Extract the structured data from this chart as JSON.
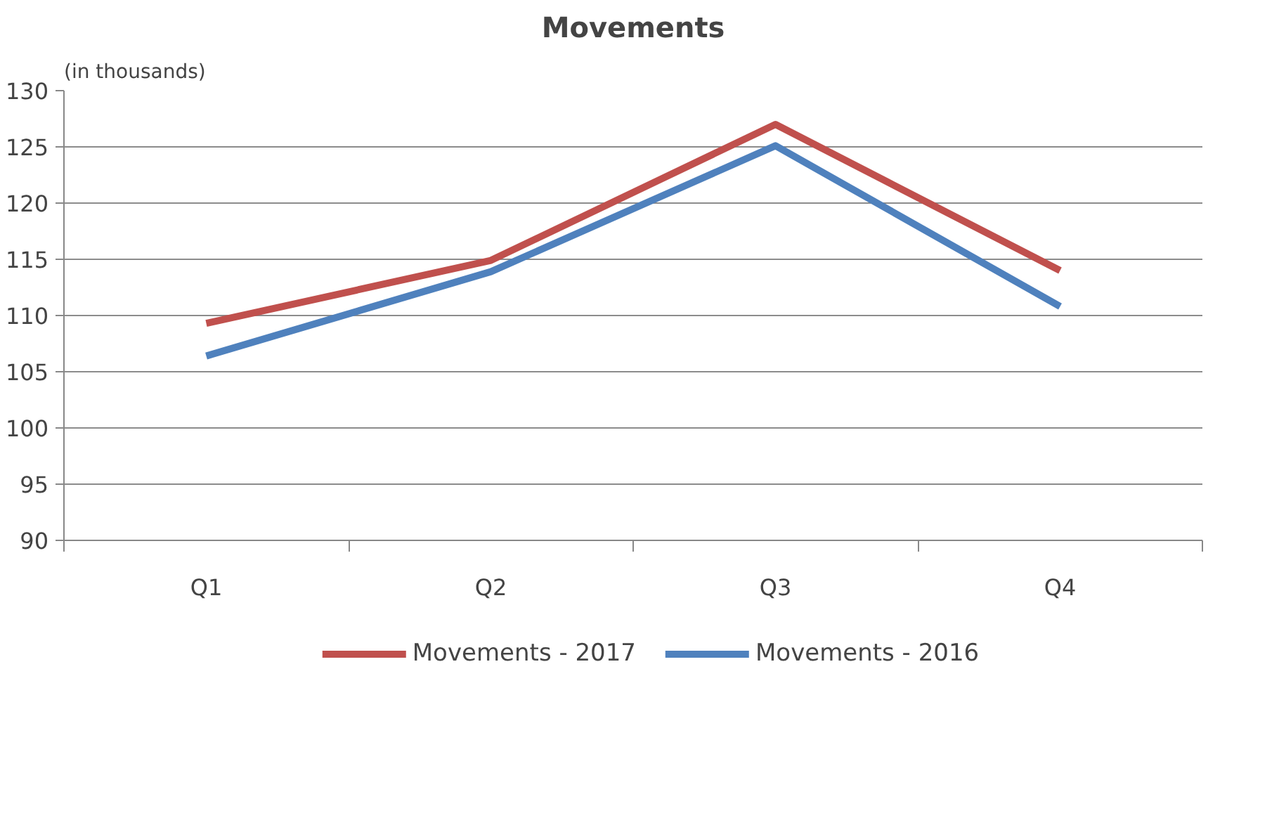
{
  "chart_data": {
    "type": "line",
    "title": "Movements",
    "ylabel": "(in thousands)",
    "categories": [
      "Q1",
      "Q2",
      "Q3",
      "Q4"
    ],
    "series": [
      {
        "name": "Movements - 2017",
        "color": "#c0504d",
        "values": [
          109.3,
          114.9,
          127.0,
          114.0
        ]
      },
      {
        "name": "Movements - 2016",
        "color": "#4f81bd",
        "values": [
          106.4,
          113.9,
          125.1,
          110.8
        ]
      }
    ],
    "ylim": [
      90,
      130
    ],
    "yticks": [
      90,
      95,
      100,
      105,
      110,
      115,
      120,
      125,
      130
    ],
    "grid": "y",
    "legend": "bottom",
    "marker": "none",
    "line_style": "solid"
  }
}
